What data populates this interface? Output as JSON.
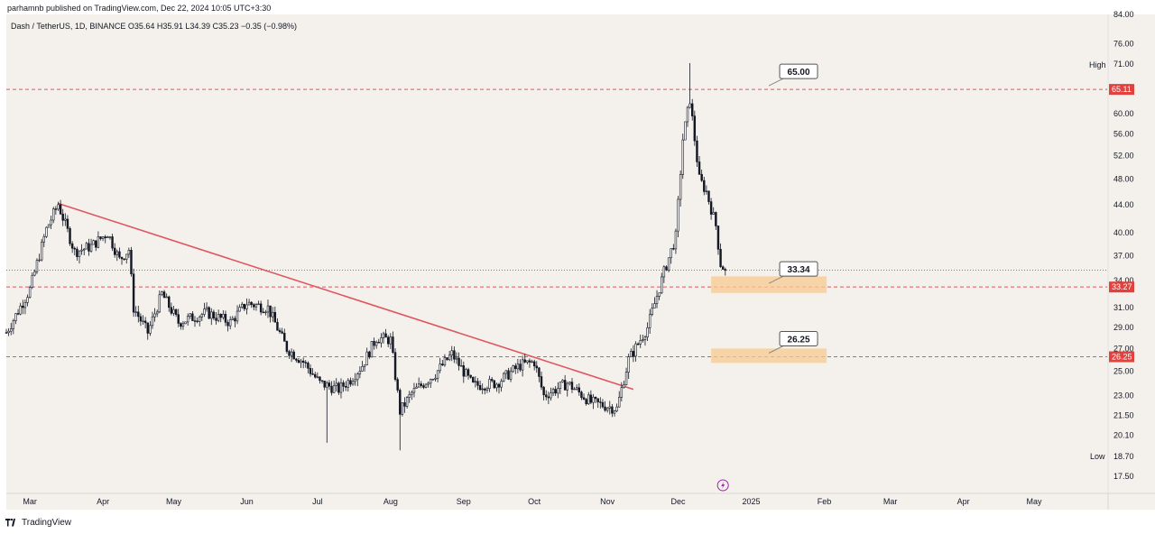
{
  "header": {
    "published_line": "parhamnb published on TradingView.com, Dec 22, 2024 10:05 UTC+3:30"
  },
  "symbol_line": "Dash / TetherUS, 1D, BINANCE  O35.64  H35.91  L34.39  C35.23  −0.35 (−0.98%)",
  "footer": {
    "brand": "TradingView"
  },
  "colors": {
    "background": "#f4f1ed",
    "candle": "#131722",
    "trendline": "#e05661",
    "dashed_levels": "#e05661",
    "zone_fill": "#f8c98f",
    "price_badge": "#e0423e"
  },
  "chart_data": {
    "type": "candlestick",
    "title": "Dash / TetherUS, 1D, BINANCE",
    "x_labels": [
      "Mar",
      "Apr",
      "May",
      "Jun",
      "Jul",
      "Aug",
      "Sep",
      "Oct",
      "Nov",
      "Dec",
      "2025",
      "Feb",
      "Mar",
      "Apr",
      "May"
    ],
    "y_ticks": [
      "84.00",
      "76.00",
      "71.00",
      "65.00",
      "60.00",
      "56.00",
      "52.00",
      "48.00",
      "44.00",
      "40.00",
      "37.00",
      "34.00",
      "31.00",
      "29.00",
      "27.00",
      "25.00",
      "23.00",
      "21.50",
      "20.10",
      "18.70",
      "17.50"
    ],
    "y_scale": "log",
    "ylim": [
      16.5,
      84.0
    ],
    "last_close": 35.23,
    "ohlc_last": {
      "open": 35.64,
      "high": 35.91,
      "low": 34.39,
      "close": 35.23,
      "change": "−0.35 (−0.98%)"
    },
    "price_path": [
      [
        "2024-02-20",
        28.5
      ],
      [
        "2024-03-01",
        33.0
      ],
      [
        "2024-03-08",
        40.5
      ],
      [
        "2024-03-13",
        44.1
      ],
      [
        "2024-03-20",
        37.5
      ],
      [
        "2024-03-27",
        38.2
      ],
      [
        "2024-04-03",
        40.0
      ],
      [
        "2024-04-08",
        36.5
      ],
      [
        "2024-04-12",
        37.8
      ],
      [
        "2024-04-14",
        31.0
      ],
      [
        "2024-04-20",
        28.5
      ],
      [
        "2024-04-26",
        32.5
      ],
      [
        "2024-05-03",
        29.5
      ],
      [
        "2024-05-15",
        30.5
      ],
      [
        "2024-05-25",
        29.5
      ],
      [
        "2024-06-01",
        31.5
      ],
      [
        "2024-06-10",
        31.0
      ],
      [
        "2024-06-18",
        27.0
      ],
      [
        "2024-06-25",
        25.8
      ],
      [
        "2024-07-02",
        24.0
      ],
      [
        "2024-07-10",
        23.5
      ],
      [
        "2024-07-15",
        24.3
      ],
      [
        "2024-07-20",
        25.5
      ],
      [
        "2024-07-26",
        28.0
      ],
      [
        "2024-08-01",
        27.8
      ],
      [
        "2024-08-05",
        21.8
      ],
      [
        "2024-08-10",
        23.2
      ],
      [
        "2024-08-20",
        24.8
      ],
      [
        "2024-08-27",
        26.5
      ],
      [
        "2024-09-05",
        23.8
      ],
      [
        "2024-09-15",
        24.0
      ],
      [
        "2024-09-25",
        25.5
      ],
      [
        "2024-10-01",
        25.8
      ],
      [
        "2024-10-05",
        23.0
      ],
      [
        "2024-10-15",
        24.0
      ],
      [
        "2024-10-25",
        22.5
      ],
      [
        "2024-11-05",
        22.0
      ],
      [
        "2024-11-10",
        26.0
      ],
      [
        "2024-11-18",
        29.0
      ],
      [
        "2024-11-25",
        35.0
      ],
      [
        "2024-11-30",
        39.5
      ],
      [
        "2024-12-03",
        55.0
      ],
      [
        "2024-12-06",
        63.0
      ],
      [
        "2024-12-10",
        48.0
      ],
      [
        "2024-12-13",
        46.0
      ],
      [
        "2024-12-17",
        41.0
      ],
      [
        "2024-12-19",
        36.0
      ],
      [
        "2024-12-21",
        35.23
      ]
    ],
    "extremes": [
      {
        "date": "2024-12-06",
        "high": 71.2
      },
      {
        "date": "2024-08-05",
        "low": 19.1
      },
      {
        "date": "2024-07-05",
        "low": 19.6
      }
    ],
    "trendline": {
      "from": [
        "2024-03-13",
        44.2
      ],
      "to": [
        "2024-11-12",
        23.5
      ]
    },
    "levels": [
      {
        "price": 65.11,
        "badge": "65.11",
        "callout": "65.00"
      },
      {
        "price": 33.27,
        "badge": "33.27",
        "callout": "33.34"
      },
      {
        "price": 26.25,
        "badge": "26.25",
        "callout": "26.25"
      }
    ],
    "zones": [
      {
        "from_date": "2024-12-15",
        "to_date": "2025-02-02",
        "low": 32.6,
        "high": 34.5
      },
      {
        "from_date": "2024-12-15",
        "to_date": "2025-02-02",
        "low": 25.7,
        "high": 27.0
      }
    ],
    "side_labels": {
      "high": "High",
      "low": "Low"
    },
    "x_range": [
      "2024-02-20",
      "2025-06-01"
    ],
    "grid": false,
    "legend": "none"
  }
}
